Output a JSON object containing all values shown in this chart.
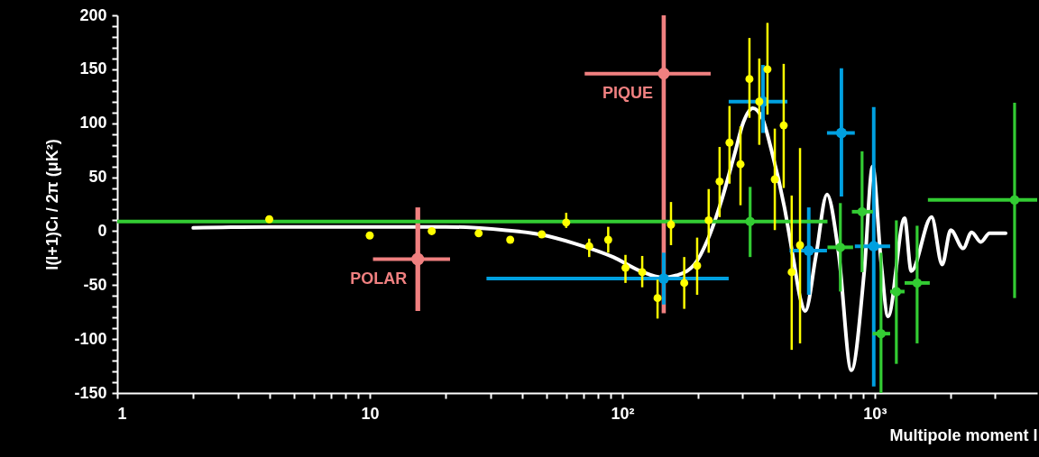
{
  "chart_data": {
    "type": "scatter",
    "xlabel": "Multipole moment l",
    "ylabel": "l(l+1)Cₗ / 2π   (μK²)",
    "log": "x",
    "grid": false,
    "marker": "circle",
    "xlim": [
      1,
      4400
    ],
    "ylim": [
      -150,
      200
    ],
    "xticks": [
      1,
      {
        "value": 2,
        "label": null
      },
      {
        "value": 3,
        "label": null
      },
      {
        "value": 4,
        "label": null
      },
      {
        "value": 5,
        "label": null
      },
      {
        "value": 6,
        "label": null
      },
      {
        "value": 7,
        "label": null
      },
      {
        "value": 8,
        "label": null
      },
      {
        "value": 9,
        "label": null
      },
      10,
      {
        "value": 20,
        "label": null
      },
      {
        "value": 30,
        "label": null
      },
      {
        "value": 40,
        "label": null
      },
      {
        "value": 50,
        "label": null
      },
      {
        "value": 60,
        "label": null
      },
      {
        "value": 70,
        "label": null
      },
      {
        "value": 80,
        "label": null
      },
      {
        "value": 90,
        "label": null
      },
      {
        "value": 100,
        "label": "10²"
      },
      {
        "value": 200,
        "label": null
      },
      {
        "value": 300,
        "label": null
      },
      {
        "value": 400,
        "label": null
      },
      {
        "value": 500,
        "label": null
      },
      {
        "value": 600,
        "label": null
      },
      {
        "value": 700,
        "label": null
      },
      {
        "value": 800,
        "label": null
      },
      {
        "value": 900,
        "label": null
      },
      {
        "value": 1000,
        "label": "10³"
      },
      {
        "value": 2000,
        "label": null
      },
      {
        "value": 3000,
        "label": null
      }
    ],
    "yticks": [
      -150,
      {
        "value": -140,
        "label": null
      },
      {
        "value": -130,
        "label": null
      },
      {
        "value": -120,
        "label": null
      },
      {
        "value": -110,
        "label": null
      },
      -100,
      {
        "value": -90,
        "label": null
      },
      {
        "value": -80,
        "label": null
      },
      {
        "value": -70,
        "label": null
      },
      {
        "value": -60,
        "label": null
      },
      -50,
      {
        "value": -40,
        "label": null
      },
      {
        "value": -30,
        "label": null
      },
      {
        "value": -20,
        "label": null
      },
      {
        "value": -10,
        "label": null
      },
      0,
      {
        "value": 10,
        "label": null
      },
      {
        "value": 20,
        "label": null
      },
      {
        "value": 30,
        "label": null
      },
      {
        "value": 40,
        "label": null
      },
      50,
      {
        "value": 60,
        "label": null
      },
      {
        "value": 70,
        "label": null
      },
      {
        "value": 80,
        "label": null
      },
      {
        "value": 90,
        "label": null
      },
      100,
      {
        "value": 110,
        "label": null
      },
      {
        "value": 120,
        "label": null
      },
      {
        "value": 130,
        "label": null
      },
      {
        "value": 140,
        "label": null
      },
      150,
      {
        "value": 160,
        "label": null
      },
      {
        "value": 170,
        "label": null
      },
      {
        "value": 180,
        "label": null
      },
      {
        "value": 190,
        "label": null
      },
      200
    ],
    "series": [
      {
        "type": "line",
        "marker": "none",
        "color": "#ffffff",
        "x": [
          2,
          4,
          10,
          20,
          34,
          47,
          66,
          92,
          118,
          145,
          164,
          193,
          218,
          247,
          279,
          302,
          329,
          358,
          389,
          439,
          478,
          507,
          531,
          584,
          647,
          719,
          808,
          909,
          981,
          1059,
          1129,
          1313,
          1395,
          1680,
          1850,
          2000,
          2240,
          2420,
          2630,
          2850,
          3300
        ],
        "values": [
          3,
          4,
          4,
          4,
          1,
          -3,
          -12,
          -24,
          -37,
          -43,
          -41,
          -31,
          -8,
          28,
          72,
          101,
          114,
          105,
          76,
          22,
          -28,
          -62,
          -74,
          -24,
          34,
          -20,
          -129,
          -37,
          60,
          -28,
          -79,
          12,
          -37,
          13,
          -31,
          1,
          -16,
          -1,
          -10,
          -2,
          -2
        ]
      },
      {
        "name": "POLAR",
        "color": "#f08080",
        "x": [
          15.5
        ],
        "values": [
          -26
        ],
        "errors": [
          [
            -74,
            22
          ]
        ],
        "xerrors": [
          [
            10.3,
            20.8
          ]
        ]
      },
      {
        "name": "PIQUE",
        "color": "#f08080",
        "x": [
          146
        ],
        "values": [
          146
        ],
        "errors": [
          [
            -76,
            200
          ]
        ],
        "xerrors": [
          [
            71,
            224
          ]
        ]
      },
      {
        "color": "#00a0e0",
        "x": [
          146,
          361,
          548,
          738,
          991
        ],
        "values": [
          -44,
          120,
          -18,
          91,
          -14
        ],
        "errors": [
          [
            -68,
            -20
          ],
          [
            91,
            154
          ],
          [
            -59,
            22
          ],
          [
            32,
            151
          ],
          [
            -144,
            115
          ]
        ],
        "xerrors": [
          [
            29,
            264
          ],
          [
            264,
            451
          ],
          [
            460,
            647
          ],
          [
            647,
            834
          ],
          [
            834,
            1151
          ]
        ]
      },
      {
        "color": "#33cc33",
        "x": [
          321,
          731,
          891,
          1059,
          1218,
          1472,
          3580
        ],
        "values": [
          9,
          -15,
          18,
          -95,
          -56,
          -48,
          29
        ],
        "errors": [
          [
            -24,
            41
          ],
          [
            -56,
            26
          ],
          [
            -38,
            74
          ],
          [
            -150,
            -20
          ],
          [
            -123,
            10
          ],
          [
            -104,
            5
          ],
          [
            -62,
            119
          ]
        ],
        "xerrors": [
          [
            1,
            650
          ],
          [
            650,
            821
          ],
          [
            812,
            984
          ],
          [
            981,
            1151
          ],
          [
            1151,
            1313
          ],
          [
            1313,
            1652
          ],
          [
            1624,
            4400
          ]
        ]
      },
      {
        "color": "#ffff00",
        "x": [
          4,
          10,
          17.6,
          27,
          36,
          48,
          60,
          74,
          88,
          103,
          120,
          138,
          156,
          176,
          198,
          220,
          243,
          266,
          294,
          319,
          349,
          376,
          402,
          436,
          469,
          506
        ],
        "values": [
          11,
          -4,
          0,
          -2,
          -8,
          -3,
          8,
          -14,
          -8,
          -34,
          -38,
          -62,
          6,
          -48,
          -32,
          10,
          46,
          82,
          62,
          141,
          120,
          150,
          48,
          98,
          -38,
          -13
        ],
        "errors": [
          null,
          null,
          null,
          null,
          null,
          null,
          [
            3,
            17
          ],
          [
            -24,
            -7
          ],
          [
            -20,
            4
          ],
          [
            -48,
            -22
          ],
          [
            -52,
            -23
          ],
          [
            -81,
            -45
          ],
          [
            -13,
            27
          ],
          [
            -72,
            -24
          ],
          [
            -59,
            -6
          ],
          [
            -20,
            39
          ],
          [
            13,
            78
          ],
          [
            44,
            116
          ],
          [
            24,
            97
          ],
          [
            105,
            179
          ],
          [
            80,
            160
          ],
          [
            108,
            193
          ],
          [
            1,
            95
          ],
          [
            40,
            155
          ],
          [
            -110,
            33
          ],
          [
            -104,
            77
          ]
        ]
      }
    ]
  }
}
